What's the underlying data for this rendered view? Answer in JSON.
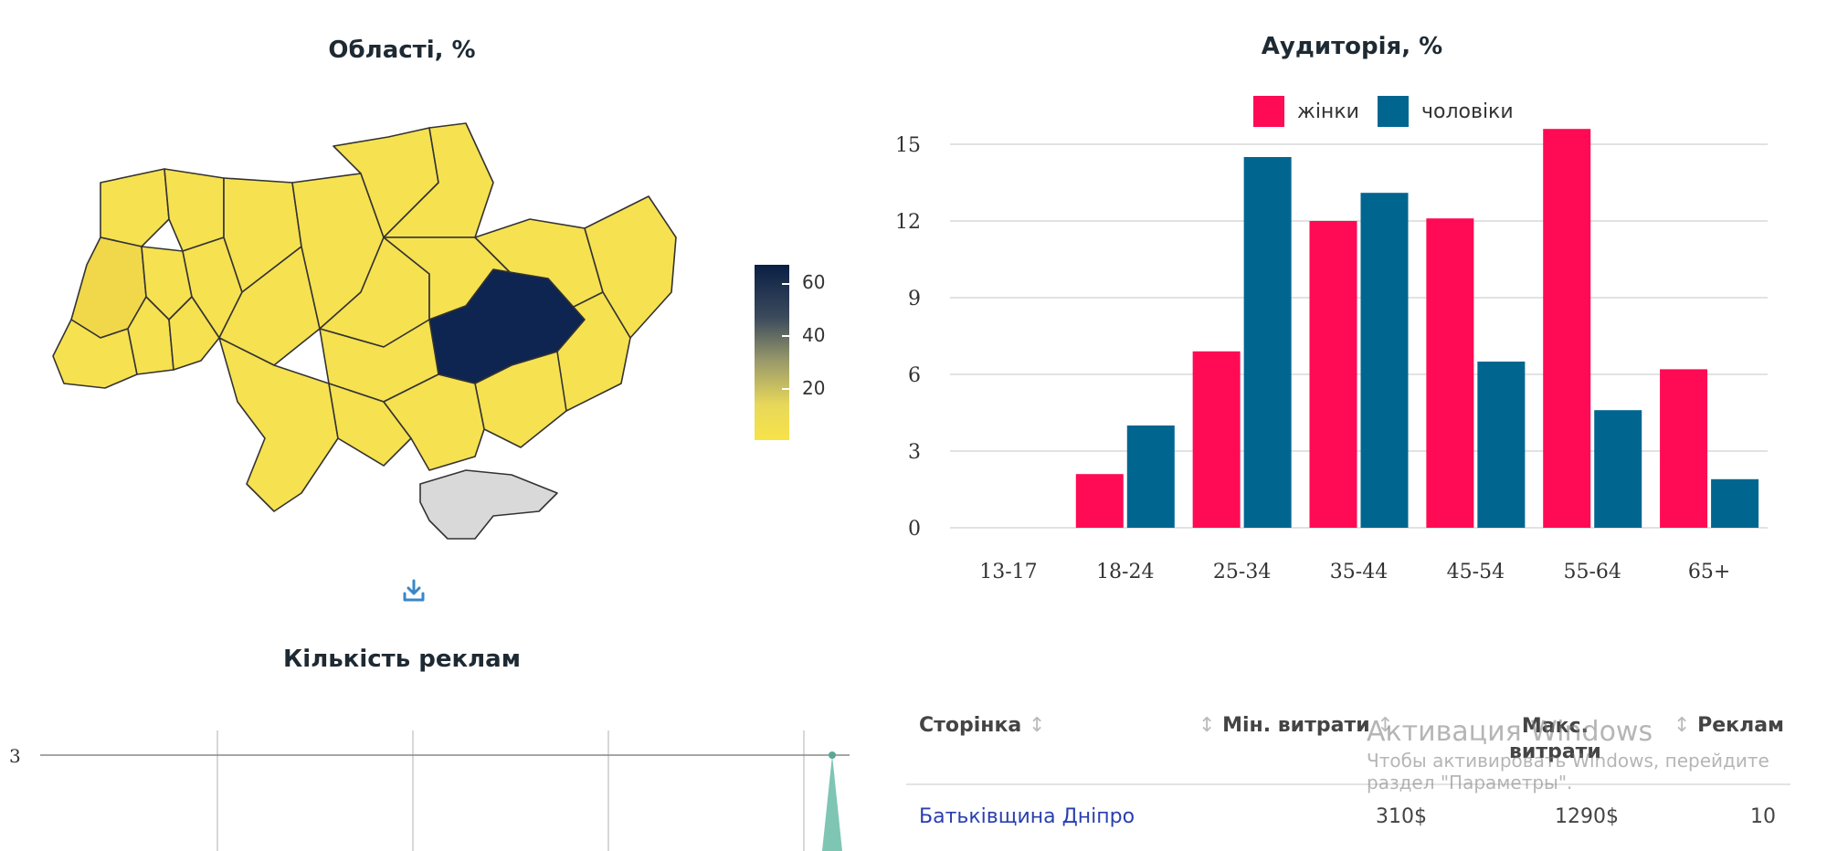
{
  "map": {
    "title": "Області, %",
    "colorbar_ticks": [
      "60",
      "40",
      "20"
    ],
    "colors": {
      "low": "#f7e34a",
      "high": "#0a1f44",
      "crimea": "#d9d9d9",
      "border": "#333333"
    }
  },
  "audience": {
    "title": "Аудиторія, %",
    "legend": [
      "жінки",
      "чоловіки"
    ]
  },
  "count_chart": {
    "title": "Кількість реклам",
    "y_tick": "3"
  },
  "download_icon": "download-icon",
  "table": {
    "headers": {
      "page": "Сторінка",
      "min_spend": "Мін. витрати",
      "max_spend_1": "Макс.",
      "max_spend_2": "витрати",
      "ads": "Реклам"
    },
    "sort_glyph": "↕",
    "rows": [
      {
        "page": "Батьківщина Дніпро",
        "min": "310$",
        "max": "1290$",
        "ads": "10"
      }
    ]
  },
  "watermark": {
    "line1": "Активация Windows",
    "line2": "Чтобы активировать Windows, перейдите",
    "line3": "раздел \"Параметры\"."
  },
  "chart_data": {
    "type": "bar",
    "categories": [
      "13-17",
      "18-24",
      "25-34",
      "35-44",
      "45-54",
      "55-64",
      "65+"
    ],
    "series": [
      {
        "name": "жінки",
        "color": "#ff0a54",
        "values": [
          0,
          2.1,
          6.9,
          12.0,
          12.1,
          15.6,
          6.2
        ]
      },
      {
        "name": "чоловіки",
        "color": "#006690",
        "values": [
          0,
          4.0,
          14.5,
          13.1,
          6.5,
          4.6,
          1.9
        ]
      }
    ],
    "yticks": [
      0,
      3,
      6,
      9,
      12,
      15
    ],
    "ylim": [
      0,
      16
    ],
    "legend_position": "top",
    "grid": true
  }
}
